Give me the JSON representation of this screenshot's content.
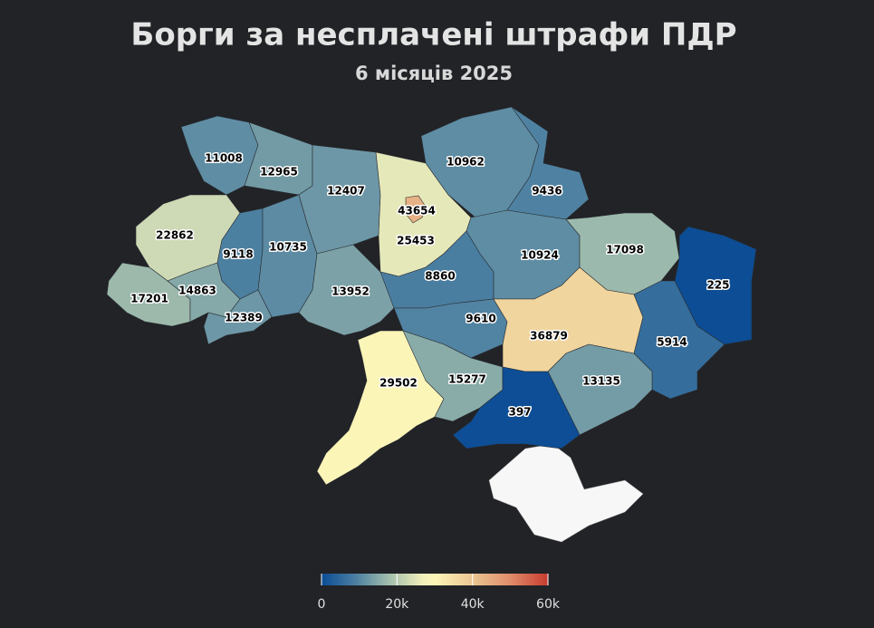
{
  "title": "Борги за несплачені штрафи ПДР",
  "subtitle": "6 місяців 2025",
  "regions": [
    11008,
    12965,
    12407,
    43654,
    25453,
    10962,
    9436,
    22862,
    9118,
    10735,
    17201,
    14863,
    12389,
    13952,
    8860,
    10924,
    17098,
    225,
    9610,
    36879,
    5914,
    29502,
    15277,
    13135,
    397
  ],
  "colorbar": {
    "range": [
      0,
      60000
    ],
    "ticks": [
      0,
      {
        "value": 20000,
        "label": "20k"
      },
      {
        "value": 40000,
        "label": "40k"
      },
      {
        "value": 60000,
        "label": "60k"
      }
    ],
    "colors": [
      [
        0,
        "#0a4c95"
      ],
      [
        0.15,
        "#4b7fa1"
      ],
      [
        0.3,
        "#a4bfad"
      ],
      [
        0.45,
        "#f2f0bb"
      ],
      [
        0.5,
        "#fdf6b8"
      ],
      [
        0.67,
        "#eac592"
      ],
      [
        0.83,
        "#e08d6b"
      ],
      [
        1,
        "#c63b2f"
      ]
    ]
  }
}
